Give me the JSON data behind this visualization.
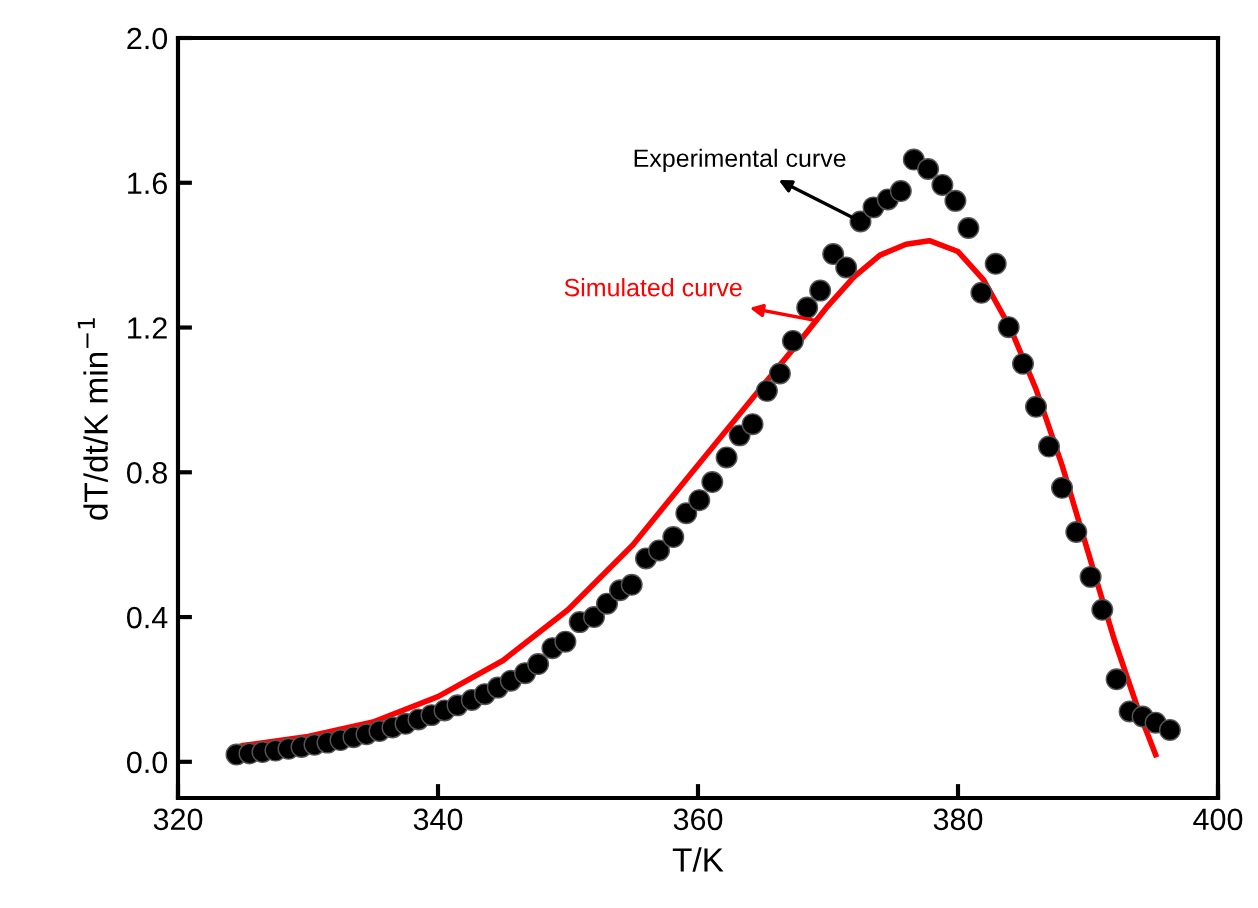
{
  "chart_data": {
    "type": "scatter",
    "xlabel": "T/K",
    "ylabel": "dT/dt/K min$^{−1}$",
    "xlim": [
      320,
      400
    ],
    "xticks": [
      320,
      340,
      360,
      380,
      400
    ],
    "ylim": [
      -0.1,
      2.0
    ],
    "yticks": [
      {
        "value": 0,
        "label": "0.0"
      },
      {
        "value": 0.4,
        "label": "0.4"
      },
      {
        "value": 0.8,
        "label": "0.8"
      },
      {
        "value": 1.2,
        "label": "1.2"
      },
      {
        "value": 1.6,
        "label": "1.6"
      },
      {
        "value": 2.0,
        "label": "2.0"
      }
    ],
    "grid": false,
    "marker": "circle",
    "series": [
      {
        "color": "#000000",
        "x": [
          324.5,
          325.5,
          326.5,
          327.5,
          328.5,
          329.5,
          330.5,
          331.5,
          332.5,
          333.5,
          334.5,
          335.5,
          336.5,
          337.5,
          338.5,
          339.5,
          340.5,
          341.5,
          342.6,
          343.6,
          344.6,
          345.6,
          346.7,
          347.7,
          348.8,
          349.8,
          350.9,
          352.0,
          353.0,
          354.0,
          354.9,
          356.0,
          357.0,
          358.1,
          359.1,
          360.1,
          361.1,
          362.2,
          363.2,
          364.2,
          365.3,
          366.3,
          367.3,
          368.4,
          369.4,
          370.4,
          371.4,
          372.5,
          373.5,
          374.6,
          375.6,
          376.6,
          377.7,
          378.8,
          379.8,
          380.8,
          381.8,
          382.9,
          383.9,
          385.0,
          386.0,
          387.0,
          388.0,
          389.1,
          390.2,
          391.1,
          392.2,
          393.2,
          394.2,
          395.2,
          396.3
        ],
        "values": [
          0.02,
          0.023,
          0.027,
          0.031,
          0.036,
          0.041,
          0.047,
          0.053,
          0.06,
          0.068,
          0.076,
          0.085,
          0.095,
          0.105,
          0.117,
          0.129,
          0.142,
          0.156,
          0.171,
          0.187,
          0.205,
          0.224,
          0.245,
          0.27,
          0.314,
          0.332,
          0.386,
          0.4,
          0.437,
          0.474,
          0.489,
          0.562,
          0.584,
          0.621,
          0.687,
          0.723,
          0.773,
          0.841,
          0.902,
          0.933,
          1.025,
          1.073,
          1.163,
          1.255,
          1.302,
          1.403,
          1.366,
          1.493,
          1.532,
          1.554,
          1.577,
          1.664,
          1.638,
          1.594,
          1.55,
          1.475,
          1.296,
          1.376,
          1.201,
          1.1,
          0.981,
          0.871,
          0.757,
          0.635,
          0.511,
          0.42,
          0.228,
          0.139,
          0.125,
          0.108,
          0.088
        ]
      },
      {
        "type": "line",
        "color": "#ff0000",
        "marker": "none",
        "x": [
          324.5,
          325,
          330,
          335,
          340,
          345,
          350,
          355,
          360,
          365,
          368,
          370,
          372,
          374,
          376,
          377.8,
          380,
          382,
          384,
          386,
          388,
          390,
          392,
          394,
          395.2
        ],
        "values": [
          0.04,
          0.045,
          0.07,
          0.11,
          0.18,
          0.28,
          0.42,
          0.6,
          0.82,
          1.04,
          1.17,
          1.26,
          1.34,
          1.4,
          1.43,
          1.44,
          1.41,
          1.33,
          1.2,
          1.03,
          0.82,
          0.58,
          0.34,
          0.13,
          0.02
        ]
      }
    ],
    "annotations": [
      {
        "text": "Experimental curve",
        "x": 372.5,
        "y": 1.493
      },
      {
        "text": "Simulated curve",
        "x": 369,
        "y": 1.22
      }
    ]
  }
}
